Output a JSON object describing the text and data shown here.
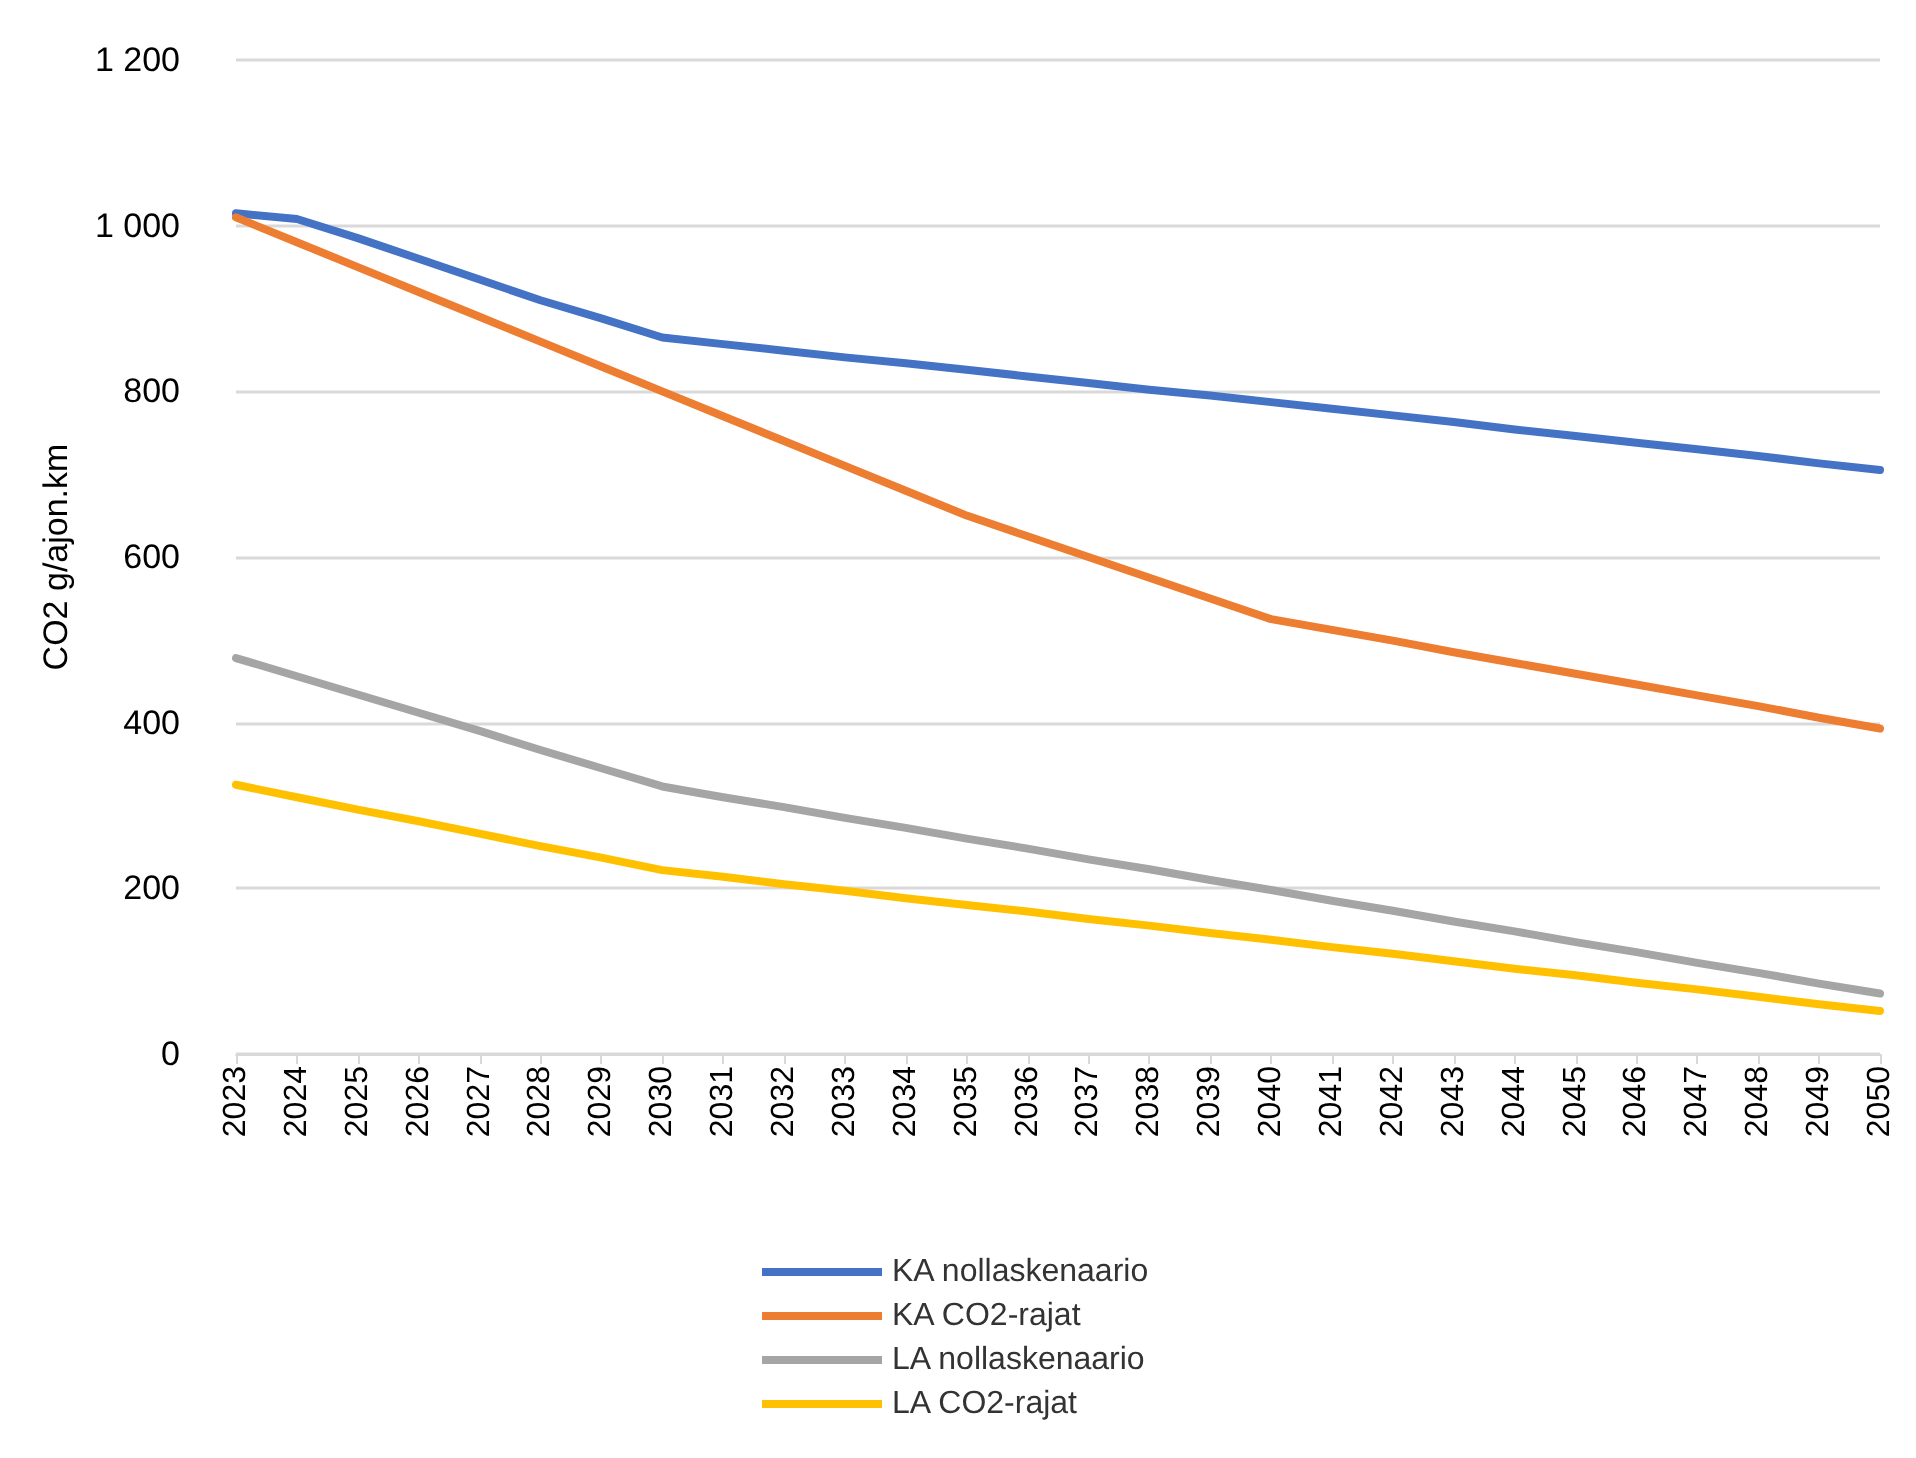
{
  "chart_data": {
    "type": "line",
    "ylabel": "CO2 g/ajon.km",
    "categories": [
      "2023",
      "2024",
      "2025",
      "2026",
      "2027",
      "2028",
      "2029",
      "2030",
      "2031",
      "2032",
      "2033",
      "2034",
      "2035",
      "2036",
      "2037",
      "2038",
      "2039",
      "2040",
      "2041",
      "2042",
      "2043",
      "2044",
      "2045",
      "2046",
      "2047",
      "2048",
      "2049",
      "2050"
    ],
    "series": [
      {
        "name": "KA nollaskenaario",
        "color": "#4472c4",
        "values": [
          1015,
          1008,
          985,
          960,
          935,
          910,
          888,
          865,
          857,
          849,
          841,
          834,
          826,
          818,
          810,
          802,
          795,
          787,
          779,
          771,
          763,
          754,
          746,
          738,
          730,
          722,
          713,
          705
        ]
      },
      {
        "name": "KA CO2-rajat",
        "color": "#ed7d31",
        "values": [
          1010,
          980,
          950,
          920,
          890,
          860,
          830,
          800,
          770,
          740,
          710,
          680,
          650,
          625,
          600,
          575,
          550,
          525,
          512,
          499,
          485,
          472,
          459,
          446,
          433,
          420,
          406,
          393
        ]
      },
      {
        "name": "LA nollaskenaario",
        "color": "#a5a5a5",
        "values": [
          478,
          456,
          434,
          412,
          390,
          367,
          345,
          323,
          310,
          298,
          285,
          273,
          260,
          248,
          235,
          223,
          210,
          198,
          185,
          173,
          160,
          148,
          135,
          123,
          110,
          98,
          85,
          73
        ]
      },
      {
        "name": "LA CO2-rajat",
        "color": "#ffc000",
        "values": [
          325,
          310,
          295,
          281,
          266,
          251,
          237,
          222,
          214,
          205,
          197,
          188,
          180,
          172,
          163,
          155,
          146,
          138,
          129,
          121,
          112,
          103,
          95,
          86,
          78,
          69,
          60,
          52
        ]
      }
    ],
    "ylim": [
      0,
      1200
    ],
    "yticks": [
      0,
      200,
      400,
      600,
      800,
      {
        "value": 1000,
        "label": "1 000"
      },
      {
        "value": 1200,
        "label": "1 200"
      }
    ],
    "grid": "y",
    "legend": "bottom",
    "marker": "none",
    "line_style": "solid"
  }
}
